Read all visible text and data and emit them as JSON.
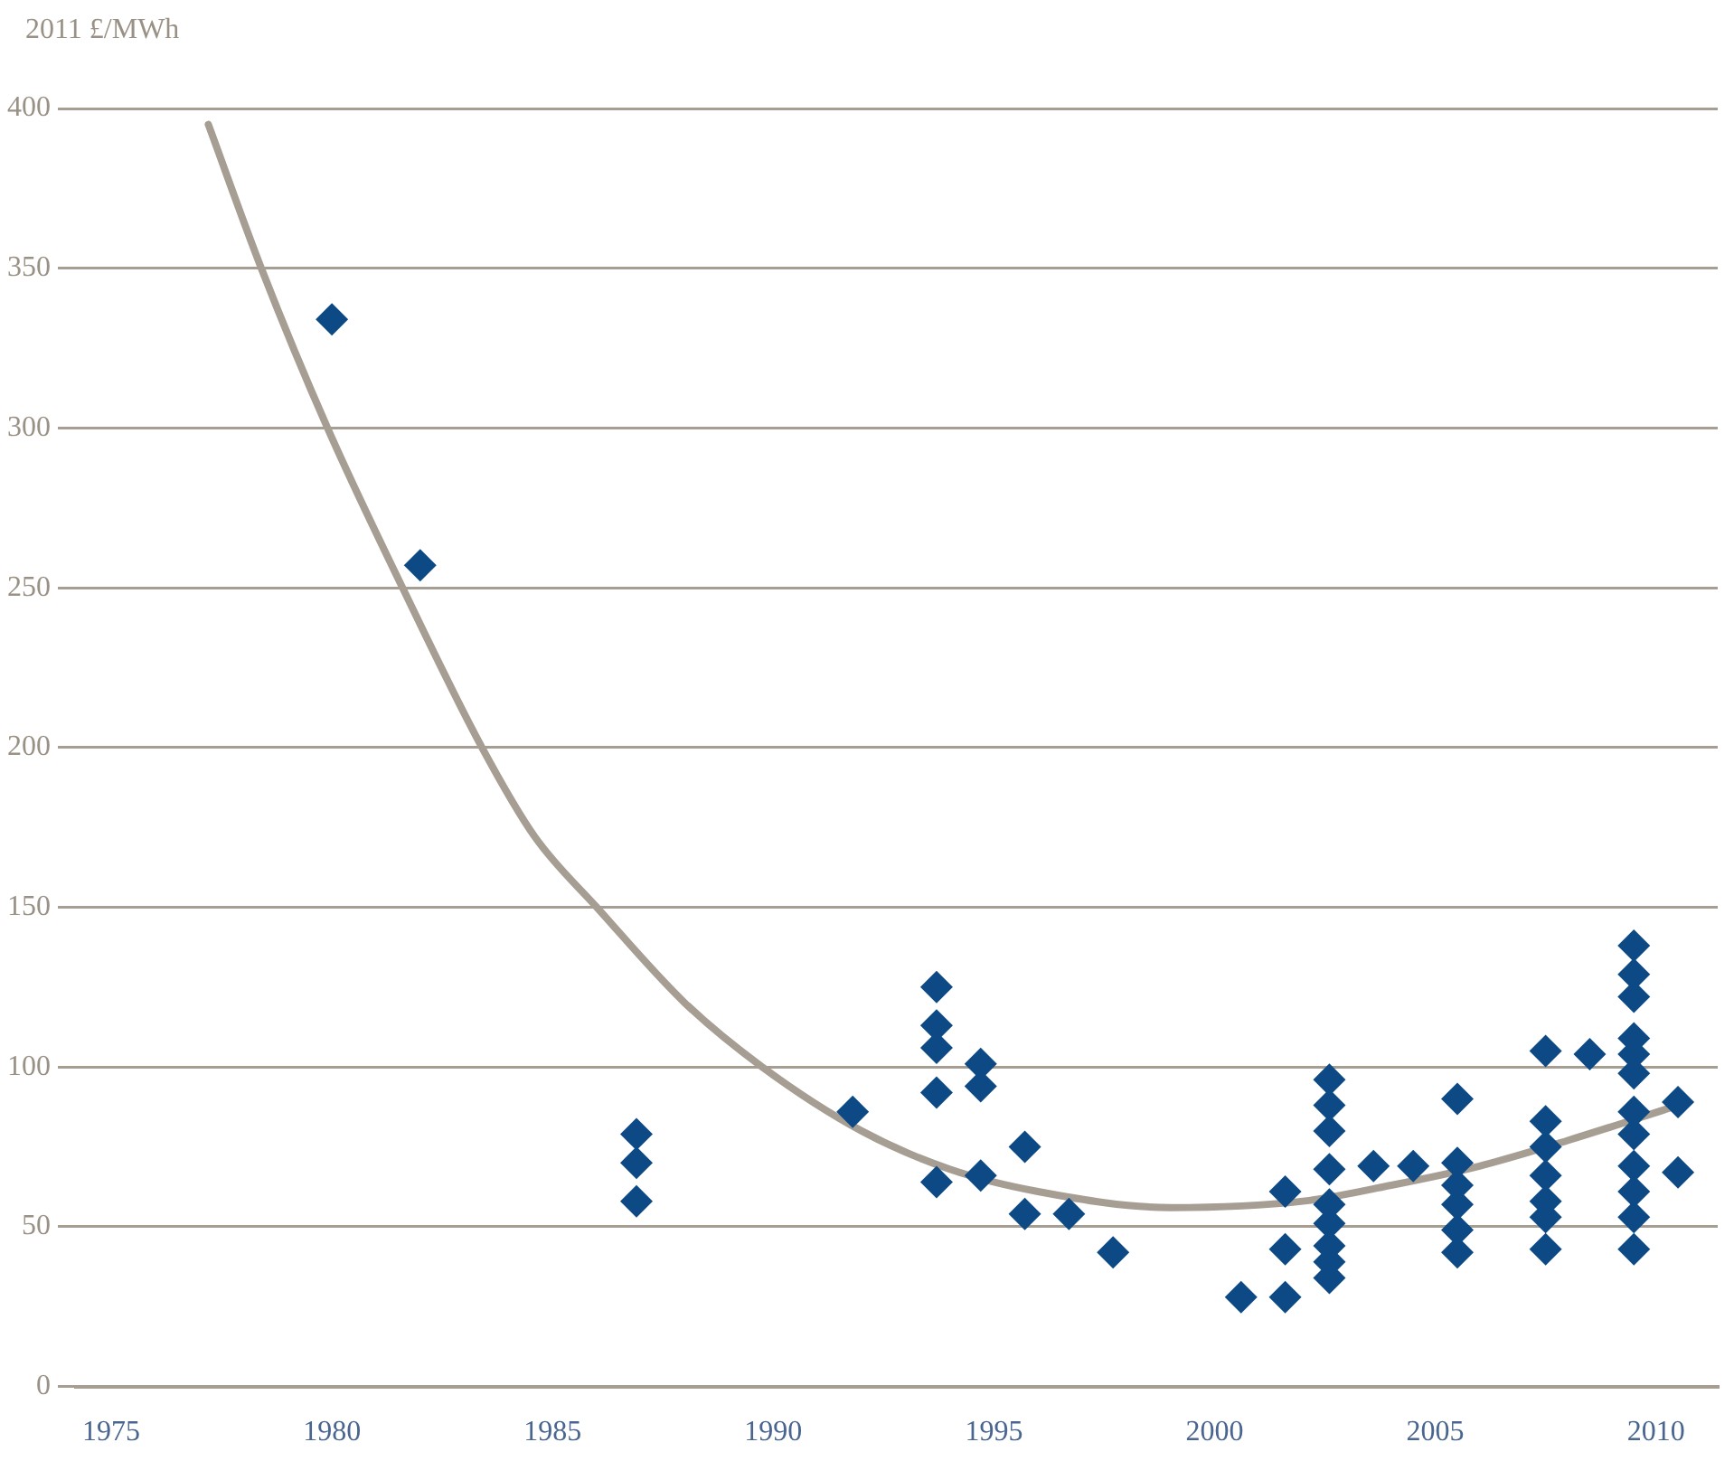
{
  "chart_data": {
    "type": "scatter",
    "ylabel": "2011 £/MWh",
    "xlim": [
      1974.2,
      2011.4
    ],
    "xticks": [
      1975,
      1980,
      1985,
      1990,
      1995,
      2000,
      2005,
      2010
    ],
    "ylim": [
      0,
      400
    ],
    "yticks": [
      0,
      50,
      100,
      150,
      200,
      250,
      300,
      350,
      400
    ],
    "grid": "y",
    "legend": false,
    "marker": "diamond",
    "series": [
      {
        "color": "#0d4a85",
        "x": [
          1980,
          1982,
          1986.9,
          1986.9,
          1986.9,
          1991.8,
          1993.7,
          1993.7,
          1993.7,
          1993.7,
          1993.7,
          1994.7,
          1994.7,
          1994.7,
          1995.7,
          1995.7,
          1996.7,
          1997.7,
          2000.6,
          2001.6,
          2001.6,
          2001.6,
          2002.6,
          2002.6,
          2002.6,
          2002.6,
          2002.6,
          2002.6,
          2002.6,
          2002.6,
          2002.6,
          2003.6,
          2004.5,
          2005.5,
          2005.5,
          2005.5,
          2005.5,
          2005.5,
          2005.5,
          2007.5,
          2007.5,
          2007.5,
          2007.5,
          2007.5,
          2007.5,
          2007.5,
          2008.5,
          2009.5,
          2009.5,
          2009.5,
          2009.5,
          2009.5,
          2009.5,
          2009.5,
          2009.5,
          2009.5,
          2009.5,
          2009.5,
          2009.5,
          2010.5,
          2010.5
        ],
        "values": [
          334,
          257,
          79,
          70,
          58,
          86,
          125,
          113,
          106,
          92,
          64,
          101,
          94,
          66,
          75,
          54,
          54,
          42,
          28,
          28,
          43,
          61,
          96,
          88,
          80,
          68,
          57,
          51,
          44,
          39,
          34,
          69,
          69,
          90,
          70,
          63,
          57,
          49,
          42,
          105,
          83,
          75,
          66,
          58,
          53,
          43,
          104,
          138,
          129,
          122,
          109,
          104,
          98,
          86,
          79,
          69,
          61,
          53,
          43,
          89,
          67
        ]
      },
      {
        "type": "line",
        "color": "#a69e93",
        "marker": "none",
        "x": [
          1977.2,
          1978.4,
          1979.9,
          1981.6,
          1983.4,
          1984.6,
          1986,
          1988,
          1989.75,
          1992,
          1994,
          1996,
          1999,
          2002,
          2004,
          2006,
          2008,
          2010.5
        ],
        "values": [
          395,
          350,
          300,
          250,
          200,
          172,
          150,
          120,
          100,
          80,
          68,
          61,
          56,
          58,
          63,
          69,
          77,
          88
        ]
      }
    ]
  }
}
